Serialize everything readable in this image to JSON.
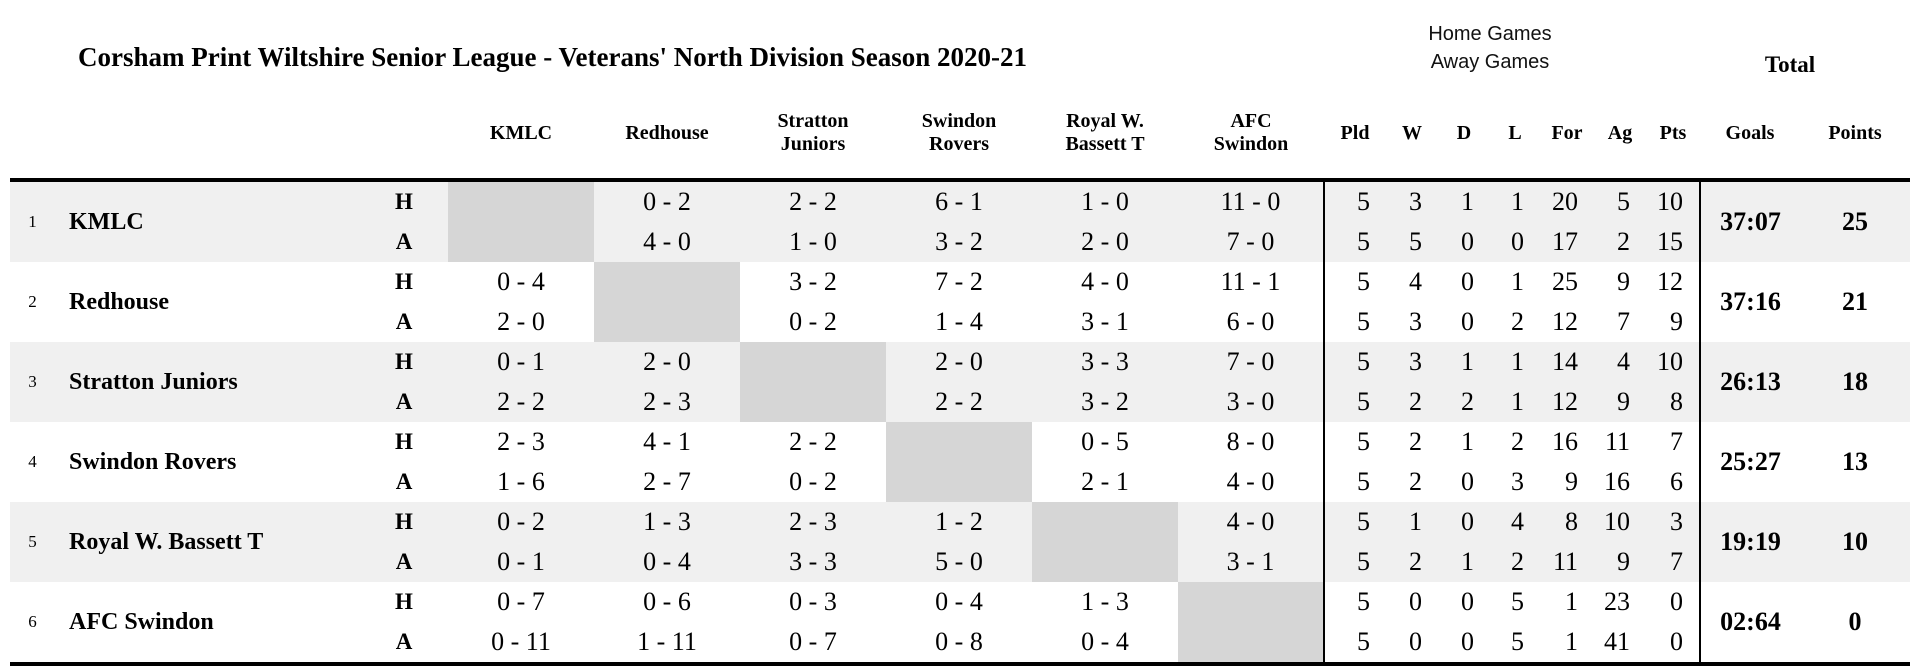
{
  "page": {
    "title": "Corsham Print Wiltshire Senior League - Veterans' North Division Season 2020-21",
    "home_games_label": "Home Games",
    "away_games_label": "Away Games",
    "total_label": "Total"
  },
  "table": {
    "home_row_label": "H",
    "away_row_label": "A",
    "opponent_headers": [
      "KMLC",
      "Redhouse",
      "Stratton\nJuniors",
      "Swindon\nRovers",
      "Royal W.\nBassett T",
      "AFC\nSwindon"
    ],
    "stat_headers": [
      "Pld",
      "W",
      "D",
      "L",
      "For",
      "Ag",
      "Pts"
    ],
    "total_headers": {
      "goals": "Goals",
      "points": "Points"
    },
    "teams": [
      {
        "rank": "1",
        "name": "KMLC",
        "home": {
          "scores": [
            null,
            "0 - 2",
            "2 - 2",
            "6 - 1",
            "1 - 0",
            "11 - 0"
          ],
          "stats": [
            "5",
            "3",
            "1",
            "1",
            "20",
            "5",
            "10"
          ]
        },
        "away": {
          "scores": [
            null,
            "4 - 0",
            "1 - 0",
            "3 - 2",
            "2 - 0",
            "7 - 0"
          ],
          "stats": [
            "5",
            "5",
            "0",
            "0",
            "17",
            "2",
            "15"
          ]
        },
        "goals": "37:07",
        "points": "25"
      },
      {
        "rank": "2",
        "name": "Redhouse",
        "home": {
          "scores": [
            "0 - 4",
            null,
            "3 - 2",
            "7 - 2",
            "4 - 0",
            "11 - 1"
          ],
          "stats": [
            "5",
            "4",
            "0",
            "1",
            "25",
            "9",
            "12"
          ]
        },
        "away": {
          "scores": [
            "2 - 0",
            null,
            "0 - 2",
            "1 - 4",
            "3 - 1",
            "6 - 0"
          ],
          "stats": [
            "5",
            "3",
            "0",
            "2",
            "12",
            "7",
            "9"
          ]
        },
        "goals": "37:16",
        "points": "21"
      },
      {
        "rank": "3",
        "name": "Stratton Juniors",
        "home": {
          "scores": [
            "0 - 1",
            "2 - 0",
            null,
            "2 - 0",
            "3 - 3",
            "7 - 0"
          ],
          "stats": [
            "5",
            "3",
            "1",
            "1",
            "14",
            "4",
            "10"
          ]
        },
        "away": {
          "scores": [
            "2 - 2",
            "2 - 3",
            null,
            "2 - 2",
            "3 - 2",
            "3 - 0"
          ],
          "stats": [
            "5",
            "2",
            "2",
            "1",
            "12",
            "9",
            "8"
          ]
        },
        "goals": "26:13",
        "points": "18"
      },
      {
        "rank": "4",
        "name": "Swindon Rovers",
        "home": {
          "scores": [
            "2 - 3",
            "4 - 1",
            "2 - 2",
            null,
            "0 - 5",
            "8 - 0"
          ],
          "stats": [
            "5",
            "2",
            "1",
            "2",
            "16",
            "11",
            "7"
          ]
        },
        "away": {
          "scores": [
            "1 - 6",
            "2 - 7",
            "0 - 2",
            null,
            "2 - 1",
            "4 - 0"
          ],
          "stats": [
            "5",
            "2",
            "0",
            "3",
            "9",
            "16",
            "6"
          ]
        },
        "goals": "25:27",
        "points": "13"
      },
      {
        "rank": "5",
        "name": "Royal W. Bassett T",
        "home": {
          "scores": [
            "0 - 2",
            "1 - 3",
            "2 - 3",
            "1 - 2",
            null,
            "4 - 0"
          ],
          "stats": [
            "5",
            "1",
            "0",
            "4",
            "8",
            "10",
            "3"
          ]
        },
        "away": {
          "scores": [
            "0 - 1",
            "0 - 4",
            "3 - 3",
            "5 - 0",
            null,
            "3 - 1"
          ],
          "stats": [
            "5",
            "2",
            "1",
            "2",
            "11",
            "9",
            "7"
          ]
        },
        "goals": "19:19",
        "points": "10"
      },
      {
        "rank": "6",
        "name": "AFC Swindon",
        "home": {
          "scores": [
            "0 - 7",
            "0 - 6",
            "0 - 3",
            "0 - 4",
            "1 - 3",
            null
          ],
          "stats": [
            "5",
            "0",
            "0",
            "5",
            "1",
            "23",
            "0"
          ]
        },
        "away": {
          "scores": [
            "0 - 11",
            "1 - 11",
            "0 - 7",
            "0 - 8",
            "0 - 4",
            null
          ],
          "stats": [
            "5",
            "0",
            "0",
            "5",
            "1",
            "41",
            "0"
          ]
        },
        "goals": "02:64",
        "points": "0"
      }
    ]
  },
  "colors": {
    "band_shaded": "#f0f0f0",
    "band_plain": "#ffffff",
    "self_match_cell": "#d6d6d6",
    "border": "#000000"
  }
}
